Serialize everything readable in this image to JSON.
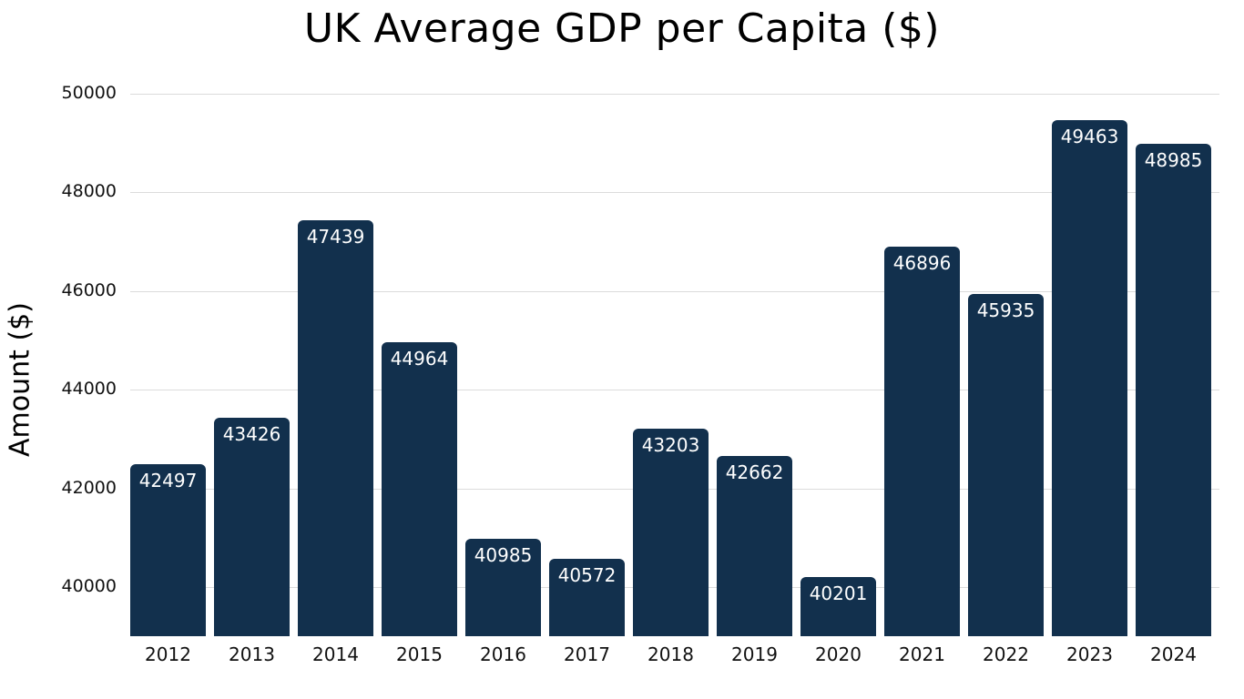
{
  "chart_data": {
    "type": "bar",
    "title": "UK Average GDP per Capita ($)",
    "xlabel": "",
    "ylabel": "Amount ($)",
    "categories": [
      "2012",
      "2013",
      "2014",
      "2015",
      "2016",
      "2017",
      "2018",
      "2019",
      "2020",
      "2021",
      "2022",
      "2023",
      "2024"
    ],
    "values": [
      42497,
      43426,
      47439,
      44964,
      40985,
      40572,
      43203,
      42662,
      40201,
      46896,
      45935,
      49463,
      48985
    ],
    "ylim": [
      39000,
      50000
    ],
    "yticks": [
      40000,
      42000,
      44000,
      46000,
      48000,
      50000
    ],
    "grid": true,
    "legend": null,
    "bar_color": "#12304d",
    "data_labels": true
  }
}
